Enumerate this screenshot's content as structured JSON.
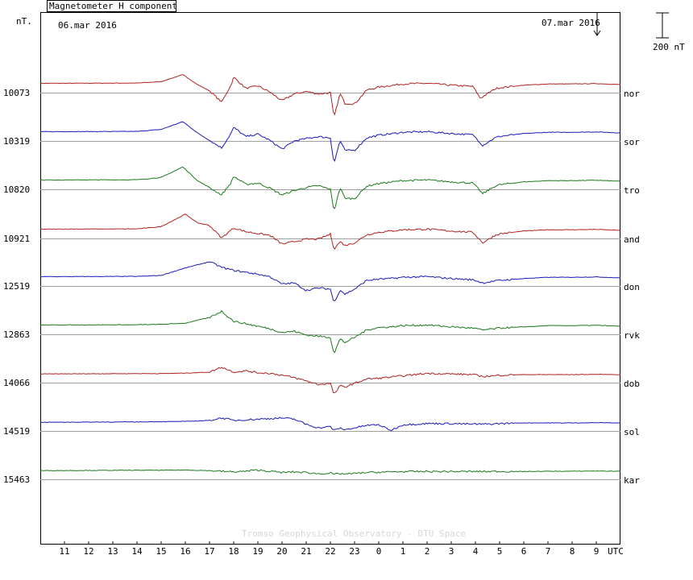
{
  "chart_data": {
    "type": "line",
    "title": "Magnetometer H component",
    "ylabel": "nT.",
    "start_date": "06.mar 2016",
    "end_date": "07.mar 2016",
    "scale_bar_label": "200 nT",
    "scale_bar_nt": 200,
    "xlabel": "UTC",
    "x_tick_labels": [
      "11",
      "12",
      "13",
      "14",
      "15",
      "16",
      "17",
      "18",
      "19",
      "20",
      "21",
      "22",
      "23",
      "0",
      "1",
      "2",
      "3",
      "4",
      "5",
      "6",
      "7",
      "8",
      "9"
    ],
    "x_range_hours": [
      10,
      34
    ],
    "watermark": "Tromso Geophysical Observatory - DTU Space",
    "colors": {
      "red": "#b02020",
      "blue": "#1a1aba",
      "green": "#1a7a1a",
      "baseline": "#a0a0a0"
    },
    "series": [
      {
        "name": "nor",
        "baseline": "10073",
        "color": "red",
        "points": [
          [
            10,
            10
          ],
          [
            14,
            12
          ],
          [
            15,
            24
          ],
          [
            15.9,
            80
          ],
          [
            16.5,
            0
          ],
          [
            17,
            -50
          ],
          [
            17.5,
            -140
          ],
          [
            17.9,
            0
          ],
          [
            18,
            60
          ],
          [
            18.5,
            -30
          ],
          [
            19,
            -10
          ],
          [
            19.5,
            -60
          ],
          [
            20,
            -130
          ],
          [
            20.5,
            -75
          ],
          [
            21,
            -55
          ],
          [
            21.5,
            -75
          ],
          [
            22,
            -65
          ],
          [
            22.15,
            -265
          ],
          [
            22.4,
            -70
          ],
          [
            22.6,
            -150
          ],
          [
            23,
            -155
          ],
          [
            23.5,
            -45
          ],
          [
            24,
            -20
          ],
          [
            24.5,
            -8
          ],
          [
            25,
            5
          ],
          [
            26,
            10
          ],
          [
            27,
            -5
          ],
          [
            27.9,
            -15
          ],
          [
            28.2,
            -110
          ],
          [
            28.8,
            -35
          ],
          [
            29,
            -25
          ],
          [
            30,
            -5
          ],
          [
            31,
            5
          ],
          [
            32,
            5
          ],
          [
            33,
            8
          ],
          [
            34,
            0
          ]
        ]
      },
      {
        "name": "sor",
        "baseline": "10319",
        "color": "blue",
        "points": [
          [
            10,
            10
          ],
          [
            14,
            12
          ],
          [
            15,
            28
          ],
          [
            15.9,
            90
          ],
          [
            16.5,
            0
          ],
          [
            17,
            -60
          ],
          [
            17.5,
            -120
          ],
          [
            17.9,
            0
          ],
          [
            18,
            45
          ],
          [
            18.5,
            -30
          ],
          [
            19,
            -10
          ],
          [
            19.5,
            -60
          ],
          [
            20,
            -130
          ],
          [
            20.5,
            -65
          ],
          [
            21,
            -45
          ],
          [
            21.5,
            -30
          ],
          [
            22,
            -40
          ],
          [
            22.15,
            -245
          ],
          [
            22.4,
            -60
          ],
          [
            22.6,
            -140
          ],
          [
            23,
            -140
          ],
          [
            23.5,
            -40
          ],
          [
            24,
            -18
          ],
          [
            24.5,
            -7
          ],
          [
            25,
            5
          ],
          [
            26,
            10
          ],
          [
            27,
            -5
          ],
          [
            27.9,
            -15
          ],
          [
            28.3,
            -100
          ],
          [
            28.8,
            -40
          ],
          [
            29,
            -28
          ],
          [
            30,
            -5
          ],
          [
            31,
            5
          ],
          [
            32,
            5
          ],
          [
            33,
            8
          ],
          [
            34,
            0
          ]
        ]
      },
      {
        "name": "tro",
        "baseline": "10820",
        "color": "green",
        "points": [
          [
            10,
            10
          ],
          [
            14,
            12
          ],
          [
            15,
            30
          ],
          [
            15.9,
            115
          ],
          [
            16.5,
            5
          ],
          [
            17,
            -50
          ],
          [
            17.5,
            -110
          ],
          [
            17.9,
            -10
          ],
          [
            18,
            40
          ],
          [
            18.5,
            -25
          ],
          [
            19,
            -15
          ],
          [
            19.5,
            -55
          ],
          [
            20,
            -110
          ],
          [
            20.5,
            -75
          ],
          [
            21,
            -50
          ],
          [
            21.5,
            -35
          ],
          [
            22,
            -65
          ],
          [
            22.15,
            -240
          ],
          [
            22.4,
            -50
          ],
          [
            22.6,
            -135
          ],
          [
            23,
            -140
          ],
          [
            23.5,
            -40
          ],
          [
            24,
            -18
          ],
          [
            24.5,
            -7
          ],
          [
            25,
            5
          ],
          [
            26,
            10
          ],
          [
            27,
            -5
          ],
          [
            27.9,
            -15
          ],
          [
            28.3,
            -100
          ],
          [
            28.8,
            -40
          ],
          [
            29,
            -28
          ],
          [
            30,
            -5
          ],
          [
            31,
            5
          ],
          [
            32,
            5
          ],
          [
            33,
            8
          ],
          [
            34,
            0
          ]
        ]
      },
      {
        "name": "and",
        "baseline": "10921",
        "color": "red",
        "points": [
          [
            10,
            10
          ],
          [
            14,
            12
          ],
          [
            15,
            30
          ],
          [
            16,
            130
          ],
          [
            16.5,
            60
          ],
          [
            17,
            40
          ],
          [
            17.5,
            -60
          ],
          [
            18,
            20
          ],
          [
            18.5,
            -10
          ],
          [
            19,
            -25
          ],
          [
            19.5,
            -40
          ],
          [
            20,
            -110
          ],
          [
            20.5,
            -90
          ],
          [
            21,
            -70
          ],
          [
            21.5,
            -70
          ],
          [
            22,
            -30
          ],
          [
            22.15,
            -150
          ],
          [
            22.4,
            -90
          ],
          [
            22.6,
            -120
          ],
          [
            23,
            -100
          ],
          [
            23.5,
            -35
          ],
          [
            24,
            -15
          ],
          [
            24.5,
            -5
          ],
          [
            25,
            5
          ],
          [
            26,
            10
          ],
          [
            27,
            -5
          ],
          [
            27.9,
            -15
          ],
          [
            28.3,
            -100
          ],
          [
            28.8,
            -40
          ],
          [
            29,
            -28
          ],
          [
            30,
            -5
          ],
          [
            31,
            5
          ],
          [
            32,
            5
          ],
          [
            33,
            8
          ],
          [
            34,
            0
          ]
        ]
      },
      {
        "name": "don",
        "baseline": "12519",
        "color": "blue",
        "points": [
          [
            10,
            10
          ],
          [
            14,
            12
          ],
          [
            15,
            20
          ],
          [
            16,
            80
          ],
          [
            17,
            130
          ],
          [
            17.5,
            85
          ],
          [
            18,
            60
          ],
          [
            18.5,
            45
          ],
          [
            19,
            30
          ],
          [
            19.5,
            10
          ],
          [
            20,
            -50
          ],
          [
            20.5,
            -40
          ],
          [
            21,
            -100
          ],
          [
            21.5,
            -80
          ],
          [
            22,
            -90
          ],
          [
            22.15,
            -200
          ],
          [
            22.4,
            -95
          ],
          [
            22.6,
            -130
          ],
          [
            23,
            -90
          ],
          [
            23.5,
            -20
          ],
          [
            24,
            -10
          ],
          [
            24.5,
            -5
          ],
          [
            25,
            5
          ],
          [
            26,
            10
          ],
          [
            27,
            -5
          ],
          [
            27.9,
            -15
          ],
          [
            28.3,
            -40
          ],
          [
            28.8,
            -25
          ],
          [
            29,
            -20
          ],
          [
            30,
            -5
          ],
          [
            31,
            5
          ],
          [
            32,
            5
          ],
          [
            33,
            8
          ],
          [
            34,
            0
          ]
        ]
      },
      {
        "name": "rvk",
        "baseline": "12863",
        "color": "green",
        "points": [
          [
            10,
            10
          ],
          [
            14,
            12
          ],
          [
            15,
            15
          ],
          [
            16,
            25
          ],
          [
            17,
            70
          ],
          [
            17.5,
            120
          ],
          [
            18,
            40
          ],
          [
            18.5,
            20
          ],
          [
            19,
            0
          ],
          [
            19.5,
            -20
          ],
          [
            20,
            -50
          ],
          [
            20.5,
            -40
          ],
          [
            21,
            -70
          ],
          [
            21.5,
            -80
          ],
          [
            22,
            -90
          ],
          [
            22.15,
            -220
          ],
          [
            22.4,
            -100
          ],
          [
            22.6,
            -130
          ],
          [
            23,
            -90
          ],
          [
            23.5,
            -30
          ],
          [
            24,
            -10
          ],
          [
            24.5,
            -5
          ],
          [
            25,
            5
          ],
          [
            26,
            10
          ],
          [
            27,
            -5
          ],
          [
            27.9,
            -15
          ],
          [
            28.3,
            -30
          ],
          [
            28.8,
            -20
          ],
          [
            29,
            -15
          ],
          [
            30,
            -5
          ],
          [
            31,
            5
          ],
          [
            32,
            5
          ],
          [
            33,
            8
          ],
          [
            34,
            0
          ]
        ]
      },
      {
        "name": "dob",
        "baseline": "14066",
        "color": "red",
        "points": [
          [
            10,
            5
          ],
          [
            14,
            8
          ],
          [
            15,
            8
          ],
          [
            16,
            12
          ],
          [
            17,
            20
          ],
          [
            17.5,
            60
          ],
          [
            18,
            20
          ],
          [
            18.5,
            30
          ],
          [
            19,
            15
          ],
          [
            19.5,
            10
          ],
          [
            20,
            -5
          ],
          [
            20.5,
            -25
          ],
          [
            21,
            -50
          ],
          [
            21.5,
            -80
          ],
          [
            22,
            -70
          ],
          [
            22.15,
            -160
          ],
          [
            22.4,
            -90
          ],
          [
            22.6,
            -100
          ],
          [
            23,
            -70
          ],
          [
            23.5,
            -35
          ],
          [
            24,
            -30
          ],
          [
            24.5,
            -20
          ],
          [
            25,
            -10
          ],
          [
            26,
            10
          ],
          [
            27,
            5
          ],
          [
            27.9,
            0
          ],
          [
            28.3,
            -15
          ],
          [
            28.8,
            -10
          ],
          [
            29,
            -5
          ],
          [
            30,
            0
          ],
          [
            31,
            0
          ],
          [
            32,
            0
          ],
          [
            33,
            2
          ],
          [
            34,
            0
          ]
        ]
      },
      {
        "name": "sol",
        "baseline": "14519",
        "color": "blue",
        "points": [
          [
            10,
            5
          ],
          [
            14,
            8
          ],
          [
            15,
            10
          ],
          [
            16,
            12
          ],
          [
            17,
            20
          ],
          [
            17.5,
            40
          ],
          [
            18,
            20
          ],
          [
            18.5,
            25
          ],
          [
            19,
            30
          ],
          [
            19.5,
            35
          ],
          [
            20,
            40
          ],
          [
            20.5,
            30
          ],
          [
            21,
            -10
          ],
          [
            21.5,
            -40
          ],
          [
            22,
            -30
          ],
          [
            22.15,
            -60
          ],
          [
            22.4,
            -40
          ],
          [
            22.6,
            -55
          ],
          [
            23,
            -40
          ],
          [
            23.5,
            -20
          ],
          [
            24,
            -15
          ],
          [
            24.5,
            -60
          ],
          [
            25,
            -15
          ],
          [
            26,
            -5
          ],
          [
            27,
            -5
          ],
          [
            27.9,
            -10
          ],
          [
            28.3,
            -10
          ],
          [
            28.8,
            -8
          ],
          [
            29,
            -5
          ],
          [
            30,
            0
          ],
          [
            31,
            0
          ],
          [
            32,
            0
          ],
          [
            33,
            2
          ],
          [
            34,
            0
          ]
        ]
      },
      {
        "name": "kar",
        "baseline": "15463",
        "color": "green",
        "points": [
          [
            10,
            5
          ],
          [
            14,
            8
          ],
          [
            15,
            8
          ],
          [
            16,
            10
          ],
          [
            17,
            5
          ],
          [
            17.5,
            0
          ],
          [
            18,
            -5
          ],
          [
            18.5,
            0
          ],
          [
            19,
            10
          ],
          [
            19.5,
            0
          ],
          [
            20,
            -10
          ],
          [
            20.5,
            -5
          ],
          [
            21,
            -10
          ],
          [
            21.5,
            -20
          ],
          [
            22,
            -15
          ],
          [
            22.15,
            -25
          ],
          [
            22.4,
            -20
          ],
          [
            22.6,
            -22
          ],
          [
            23,
            -18
          ],
          [
            23.5,
            -10
          ],
          [
            24,
            -8
          ],
          [
            24.5,
            -5
          ],
          [
            25,
            -3
          ],
          [
            26,
            -2
          ],
          [
            27,
            -2
          ],
          [
            28,
            -2
          ],
          [
            29,
            -2
          ],
          [
            30,
            -2
          ],
          [
            31,
            0
          ],
          [
            32,
            0
          ],
          [
            33,
            2
          ],
          [
            34,
            0
          ]
        ]
      }
    ]
  }
}
